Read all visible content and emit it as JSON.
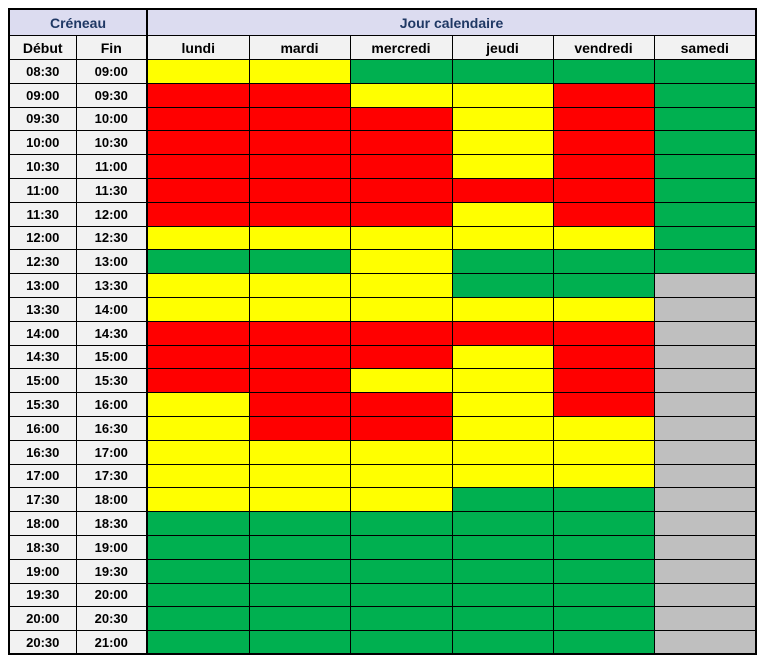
{
  "table": {
    "header": {
      "creneau_label": "Créneau",
      "jour_label": "Jour calendaire",
      "debut_label": "Début",
      "fin_label": "Fin",
      "days": [
        "lundi",
        "mardi",
        "mercredi",
        "jeudi",
        "vendredi",
        "samedi"
      ]
    },
    "colors": {
      "R": "#ff0000",
      "Y": "#ffff00",
      "G": "#00b050",
      "X": "#bfbfbf"
    },
    "style": {
      "group_header_bg": "#dcdcf0",
      "group_header_text": "#1f3864",
      "subheader_bg": "#f2f2f2",
      "time_cell_bg": "#f2f2f2",
      "border_color": "#000000"
    },
    "rows": [
      {
        "debut": "08:30",
        "fin": "09:00",
        "cells": [
          "Y",
          "Y",
          "G",
          "G",
          "G",
          "G"
        ]
      },
      {
        "debut": "09:00",
        "fin": "09:30",
        "cells": [
          "R",
          "R",
          "Y",
          "Y",
          "R",
          "G"
        ]
      },
      {
        "debut": "09:30",
        "fin": "10:00",
        "cells": [
          "R",
          "R",
          "R",
          "Y",
          "R",
          "G"
        ]
      },
      {
        "debut": "10:00",
        "fin": "10:30",
        "cells": [
          "R",
          "R",
          "R",
          "Y",
          "R",
          "G"
        ]
      },
      {
        "debut": "10:30",
        "fin": "11:00",
        "cells": [
          "R",
          "R",
          "R",
          "Y",
          "R",
          "G"
        ]
      },
      {
        "debut": "11:00",
        "fin": "11:30",
        "cells": [
          "R",
          "R",
          "R",
          "R",
          "R",
          "G"
        ]
      },
      {
        "debut": "11:30",
        "fin": "12:00",
        "cells": [
          "R",
          "R",
          "R",
          "Y",
          "R",
          "G"
        ]
      },
      {
        "debut": "12:00",
        "fin": "12:30",
        "cells": [
          "Y",
          "Y",
          "Y",
          "Y",
          "Y",
          "G"
        ]
      },
      {
        "debut": "12:30",
        "fin": "13:00",
        "cells": [
          "G",
          "G",
          "Y",
          "G",
          "G",
          "G"
        ]
      },
      {
        "debut": "13:00",
        "fin": "13:30",
        "cells": [
          "Y",
          "Y",
          "Y",
          "G",
          "G",
          "X"
        ]
      },
      {
        "debut": "13:30",
        "fin": "14:00",
        "cells": [
          "Y",
          "Y",
          "Y",
          "Y",
          "Y",
          "X"
        ]
      },
      {
        "debut": "14:00",
        "fin": "14:30",
        "cells": [
          "R",
          "R",
          "R",
          "R",
          "R",
          "X"
        ]
      },
      {
        "debut": "14:30",
        "fin": "15:00",
        "cells": [
          "R",
          "R",
          "R",
          "Y",
          "R",
          "X"
        ]
      },
      {
        "debut": "15:00",
        "fin": "15:30",
        "cells": [
          "R",
          "R",
          "Y",
          "Y",
          "R",
          "X"
        ]
      },
      {
        "debut": "15:30",
        "fin": "16:00",
        "cells": [
          "Y",
          "R",
          "R",
          "Y",
          "R",
          "X"
        ]
      },
      {
        "debut": "16:00",
        "fin": "16:30",
        "cells": [
          "Y",
          "R",
          "R",
          "Y",
          "Y",
          "X"
        ]
      },
      {
        "debut": "16:30",
        "fin": "17:00",
        "cells": [
          "Y",
          "Y",
          "Y",
          "Y",
          "Y",
          "X"
        ]
      },
      {
        "debut": "17:00",
        "fin": "17:30",
        "cells": [
          "Y",
          "Y",
          "Y",
          "Y",
          "Y",
          "X"
        ]
      },
      {
        "debut": "17:30",
        "fin": "18:00",
        "cells": [
          "Y",
          "Y",
          "Y",
          "G",
          "G",
          "X"
        ]
      },
      {
        "debut": "18:00",
        "fin": "18:30",
        "cells": [
          "G",
          "G",
          "G",
          "G",
          "G",
          "X"
        ]
      },
      {
        "debut": "18:30",
        "fin": "19:00",
        "cells": [
          "G",
          "G",
          "G",
          "G",
          "G",
          "X"
        ]
      },
      {
        "debut": "19:00",
        "fin": "19:30",
        "cells": [
          "G",
          "G",
          "G",
          "G",
          "G",
          "X"
        ]
      },
      {
        "debut": "19:30",
        "fin": "20:00",
        "cells": [
          "G",
          "G",
          "G",
          "G",
          "G",
          "X"
        ]
      },
      {
        "debut": "20:00",
        "fin": "20:30",
        "cells": [
          "G",
          "G",
          "G",
          "G",
          "G",
          "X"
        ]
      },
      {
        "debut": "20:30",
        "fin": "21:00",
        "cells": [
          "G",
          "G",
          "G",
          "G",
          "G",
          "X"
        ]
      }
    ]
  }
}
